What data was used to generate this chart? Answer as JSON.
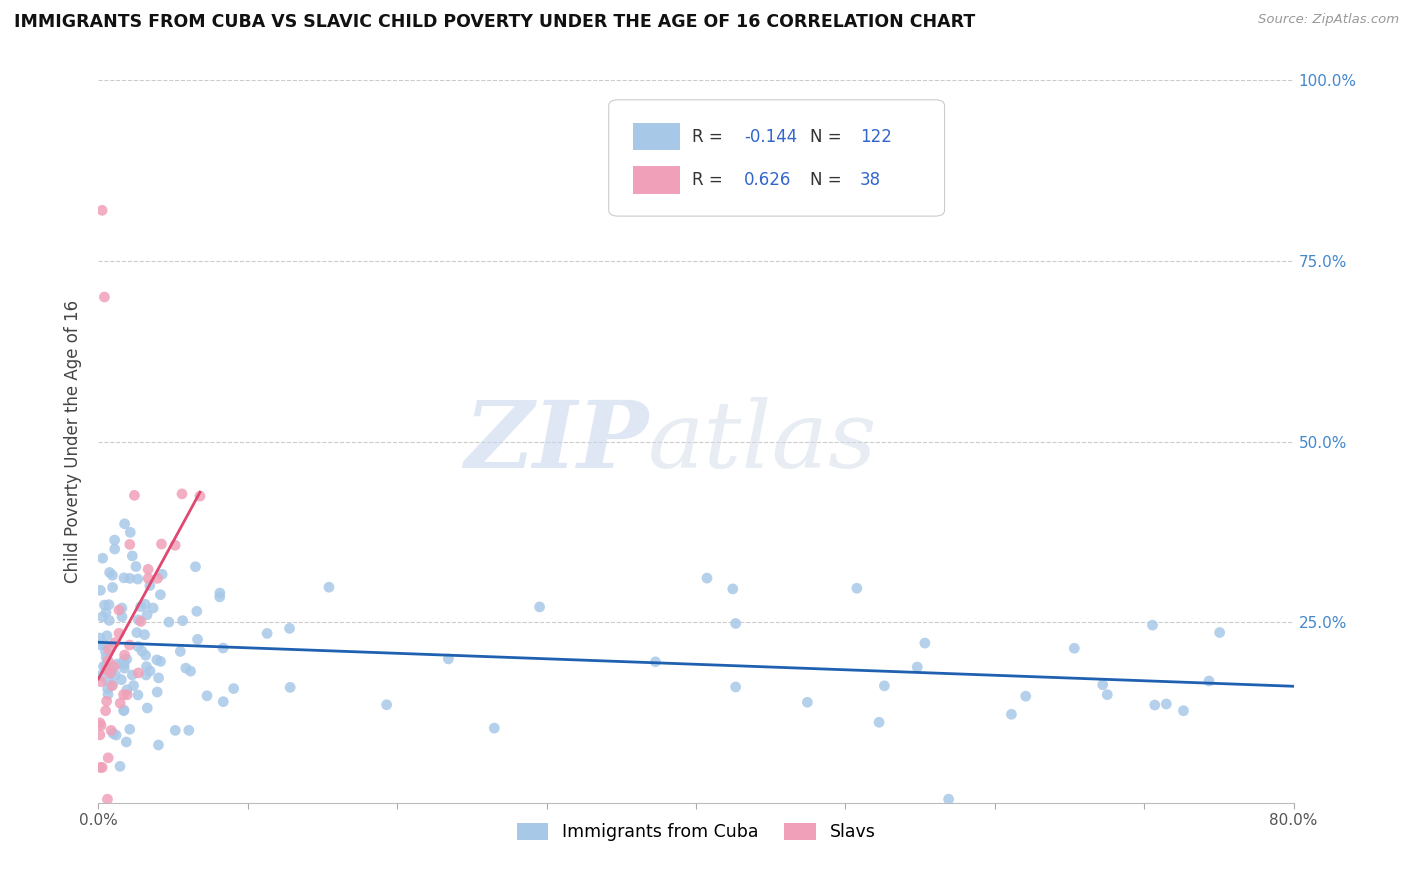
{
  "title": "IMMIGRANTS FROM CUBA VS SLAVIC CHILD POVERTY UNDER THE AGE OF 16 CORRELATION CHART",
  "source": "Source: ZipAtlas.com",
  "ylabel": "Child Poverty Under the Age of 16",
  "xlim": [
    0.0,
    0.8
  ],
  "ylim": [
    0.0,
    1.0
  ],
  "cuba_color": "#a8c8e8",
  "slav_color": "#f0a0b8",
  "cuba_line_color": "#2060b0",
  "slav_line_color": "#e04870",
  "watermark_zip": "ZIP",
  "watermark_atlas": "atlas",
  "legend_r_cuba": "-0.144",
  "legend_n_cuba": "122",
  "legend_r_slav": "0.626",
  "legend_n_slav": "38",
  "legend_label_cuba": "Immigrants from Cuba",
  "legend_label_slav": "Slavs"
}
